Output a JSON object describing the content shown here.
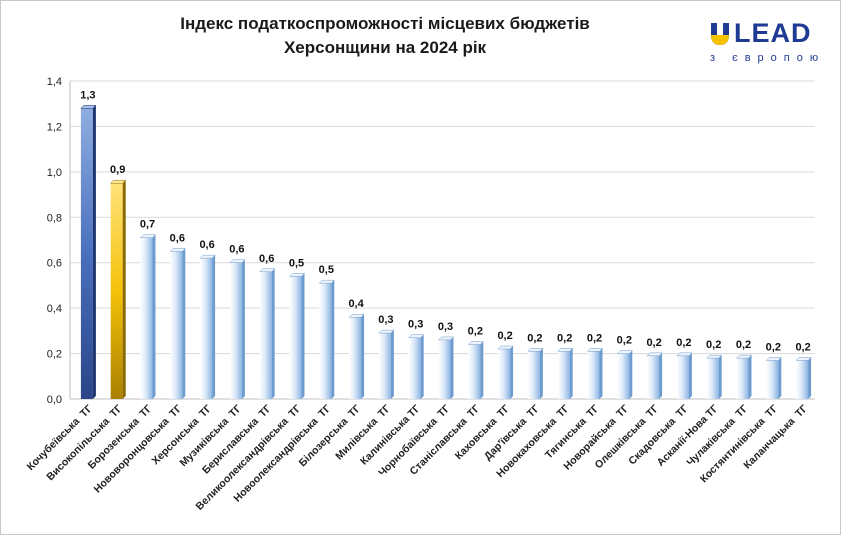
{
  "title_line1": "Індекс податкоспроможності місцевих бюджетів",
  "title_line2": "Херсонщини на 2024 рік",
  "logo": {
    "text": "LEAD",
    "subtitle": "з європою",
    "mark_icon": "u-shield-icon",
    "colors": {
      "blue": "#1f3a93",
      "yellow": "#f5c400"
    }
  },
  "colors": {
    "default_bar": "#9fc3ea",
    "highlight_blue": "#3b5fae",
    "highlight_gold": "#f3b800",
    "grid": "#d9d9d9"
  },
  "chart_data": {
    "type": "bar",
    "title": "Індекс податкоспроможності місцевих бюджетів Херсонщини на 2024 рік",
    "ylim": [
      0,
      1.4
    ],
    "yticks": [
      "0,0",
      "0,2",
      "0,4",
      "0,6",
      "0,8",
      "1,0",
      "1,2",
      "1,4"
    ],
    "grid": true,
    "categories": [
      "Кочубеївська  ТГ",
      "Високопільська  ТГ",
      "Борозенська  ТГ",
      "Нововоронцовська  ТГ",
      "Херсонська  ТГ",
      "Музиківська  ТГ",
      "Бериславська  ТГ",
      "Великоолександрівська  ТГ",
      "Новоолександрівська  ТГ",
      "Білозерська  ТГ",
      "Милівська  ТГ",
      "Калинівська ТГ",
      "Чорнобаївська  ТГ",
      "Станіславська  ТГ",
      "Каховська  ТГ",
      "Дар'ївська  ТГ",
      "Новокаховська  ТГ",
      "Тягинська  ТГ",
      "Новорайська  ТГ",
      "Олешківська  ТГ",
      "Скадовська  ТГ",
      "Асканії-Нова ТГ",
      "Чулаківська  ТГ",
      "Костянтинівська  ТГ",
      "Каланчацька  ТГ"
    ],
    "values": [
      1.28,
      0.95,
      0.71,
      0.65,
      0.62,
      0.6,
      0.56,
      0.54,
      0.51,
      0.36,
      0.29,
      0.27,
      0.26,
      0.24,
      0.22,
      0.21,
      0.21,
      0.21,
      0.2,
      0.19,
      0.19,
      0.18,
      0.18,
      0.17,
      0.17
    ],
    "labels": [
      "1,3",
      "0,9",
      "0,7",
      "0,6",
      "0,6",
      "0,6",
      "0,6",
      "0,5",
      "0,5",
      "0,4",
      "0,3",
      "0,3",
      "0,3",
      "0,2",
      "0,2",
      "0,2",
      "0,2",
      "0,2",
      "0,2",
      "0,2",
      "0,2",
      "0,2",
      "0,2",
      "0,2",
      "0,2"
    ],
    "highlight": {
      "0": "blue",
      "1": "gold"
    }
  }
}
